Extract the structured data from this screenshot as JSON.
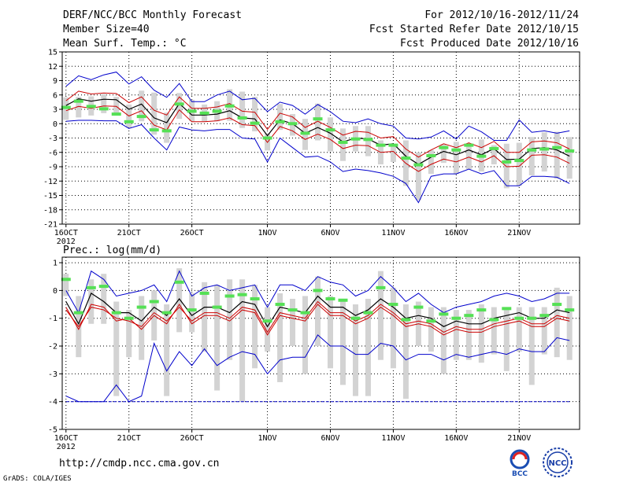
{
  "header": {
    "title": "DERF/NCC/BCC Monthly Forecast",
    "member_size": "Member Size=40",
    "variable": "Mean Surf. Temp.: °C",
    "forecast_range": "For 2012/10/16-2012/11/24",
    "started": "Fcst Started Refer Date 2012/10/15",
    "produced": "Fcst Produced Date 2012/10/16"
  },
  "footer": {
    "url": "http://cmdp.ncc.cma.gov.cn",
    "credit": "GrADS: COLA/IGES",
    "logo_left_text": "BCC",
    "logo_right_text": "NCC"
  },
  "colors": {
    "ensemble_mean": "#000000",
    "spread_lines": "#cc0000",
    "minmax_lines": "#0000cc",
    "range_bars": "#d3d3d3",
    "observation_marks": "#55e055",
    "grid": "#000000"
  },
  "chart_data": [
    {
      "type": "line",
      "title": "Mean Surf. Temp.: °C",
      "x_ticks": [
        "16OCT",
        "21OCT",
        "26OCT",
        "1NOV",
        "6NOV",
        "11NOV",
        "16NOV",
        "21NOV"
      ],
      "x_year": "2012",
      "xlim": [
        1,
        41
      ],
      "ylim": [
        -21,
        15
      ],
      "y_ticks": [
        15,
        12,
        9,
        6,
        3,
        0,
        -3,
        -6,
        -9,
        -12,
        -15,
        -18,
        -21
      ],
      "series": [
        {
          "name": "ensemble mean",
          "values": [
            3.8,
            5.2,
            4.7,
            5.1,
            5.0,
            3.0,
            4.1,
            1.2,
            0.2,
            4.2,
            1.8,
            1.8,
            2.0,
            2.7,
            1.2,
            1.0,
            -2.5,
            0.8,
            0.0,
            -2.0,
            -0.8,
            -2.0,
            -3.8,
            -3.0,
            -3.2,
            -4.5,
            -4.2,
            -6.8,
            -8.5,
            -7.0,
            -5.8,
            -6.5,
            -5.5,
            -6.5,
            -5.2,
            -7.5,
            -7.4,
            -5.2,
            -5.0,
            -5.5,
            -6.8
          ]
        },
        {
          "name": "upper spread",
          "values": [
            4.8,
            6.8,
            6.2,
            6.4,
            6.3,
            4.4,
            5.6,
            2.8,
            1.8,
            5.6,
            3.2,
            3.2,
            3.5,
            4.2,
            2.6,
            2.4,
            -1.2,
            2.2,
            1.4,
            -0.8,
            0.5,
            -0.8,
            -2.4,
            -1.6,
            -1.8,
            -3.0,
            -2.7,
            -5.3,
            -7.0,
            -5.5,
            -4.2,
            -5.0,
            -4.0,
            -5.0,
            -3.7,
            -6.0,
            -6.0,
            -3.8,
            -3.6,
            -4.0,
            -5.3
          ]
        },
        {
          "name": "lower spread",
          "values": [
            2.7,
            3.6,
            3.2,
            3.7,
            3.6,
            1.6,
            2.7,
            -0.3,
            -1.3,
            2.9,
            0.4,
            0.4,
            0.6,
            1.2,
            -0.2,
            -0.4,
            -3.9,
            -0.6,
            -1.5,
            -3.3,
            -2.2,
            -3.3,
            -5.2,
            -4.5,
            -4.6,
            -6.0,
            -5.8,
            -8.3,
            -10.0,
            -8.5,
            -7.4,
            -8.0,
            -7.0,
            -8.0,
            -6.7,
            -9.0,
            -8.9,
            -6.6,
            -6.5,
            -7.0,
            -8.3
          ]
        },
        {
          "name": "maximum",
          "values": [
            7.8,
            10.0,
            9.2,
            10.2,
            10.8,
            8.3,
            9.8,
            7.0,
            5.5,
            8.4,
            4.6,
            4.6,
            6.0,
            6.8,
            5.0,
            5.3,
            2.5,
            4.5,
            3.8,
            2.0,
            4.0,
            2.5,
            0.5,
            0.2,
            1.0,
            0.0,
            -0.5,
            -3.0,
            -3.2,
            -2.8,
            -1.5,
            -3.2,
            -0.5,
            -1.7,
            -3.5,
            -3.5,
            0.8,
            -1.8,
            -1.5,
            -2.0,
            -1.5
          ]
        },
        {
          "name": "minimum",
          "values": [
            0.5,
            0.7,
            0.7,
            0.6,
            0.6,
            -1.0,
            -0.2,
            -3.0,
            -5.5,
            -0.7,
            -1.3,
            -1.5,
            -1.2,
            -1.2,
            -3.0,
            -3.2,
            -8.0,
            -3.0,
            -5.0,
            -7.0,
            -6.8,
            -8.0,
            -10.0,
            -9.5,
            -9.8,
            -10.3,
            -11.0,
            -12.5,
            -16.5,
            -11.0,
            -10.5,
            -10.5,
            -9.5,
            -10.5,
            -9.8,
            -13.0,
            -13.0,
            -11.0,
            -11.0,
            -11.2,
            -12.5
          ]
        },
        {
          "name": "observation",
          "values": [
            3.4,
            4.7,
            3.6,
            3.1,
            2.0,
            0.4,
            1.5,
            -1.3,
            -1.5,
            4.1,
            2.6,
            2.2,
            2.6,
            3.7,
            1.2,
            0.1,
            -3.0,
            0.4,
            0.0,
            -2.0,
            1.0,
            -1.3,
            -3.9,
            -3.2,
            -3.3,
            -4.5,
            -4.5,
            -7.2,
            -8.6,
            -6.7,
            -5.0,
            -5.5,
            -4.5,
            -6.8,
            -5.2,
            -8.0,
            -7.7,
            -5.5,
            -5.3,
            -5.0,
            -5.7
          ]
        },
        {
          "name": "range top",
          "values": [
            5.5,
            5.6,
            5.7,
            6.2,
            5.6,
            4.0,
            6.9,
            6.5,
            2.3,
            6.4,
            5.0,
            4.0,
            4.7,
            7.2,
            6.7,
            5.6,
            -2.0,
            4.1,
            2.0,
            1.0,
            4.2,
            1.3,
            -1.0,
            -0.5,
            -0.5,
            -3.5,
            -4.5,
            -3.5,
            -6.0,
            -5.5,
            -4.3,
            -3.8,
            -4.2,
            -3.3,
            -4.5,
            -4.2,
            -4.0,
            -2.8,
            -1.8,
            -1.7,
            -2.8
          ]
        },
        {
          "name": "range bottom",
          "values": [
            0.8,
            1.3,
            1.7,
            2.2,
            2.0,
            -0.8,
            0.5,
            -2.3,
            -4.0,
            1.0,
            0.5,
            0.5,
            0.5,
            0.6,
            -0.9,
            -1.6,
            -5.6,
            -1.3,
            -2.5,
            -5.5,
            -3.5,
            -5.8,
            -7.8,
            -5.8,
            -6.8,
            -8.5,
            -8.0,
            -13.0,
            -16.0,
            -10.5,
            -8.2,
            -10.5,
            -9.5,
            -10.0,
            -8.5,
            -13.5,
            -13.0,
            -10.8,
            -10.0,
            -11.5,
            -11.5
          ]
        }
      ]
    },
    {
      "type": "line",
      "title": "Prec.: log(mm/d)",
      "x_ticks": [
        "16OCT",
        "21OCT",
        "26OCT",
        "1NOV",
        "6NOV",
        "11NOV",
        "16NOV",
        "21NOV"
      ],
      "x_year": "2012",
      "xlim": [
        1,
        41
      ],
      "ylim": [
        -5,
        1.2
      ],
      "y_ticks": [
        1,
        0,
        -1,
        -2,
        -3,
        -4,
        -5
      ],
      "series": [
        {
          "name": "ensemble mean",
          "values": [
            -0.4,
            -1.2,
            -0.1,
            -0.4,
            -0.8,
            -0.8,
            -1.1,
            -0.6,
            -0.9,
            -0.3,
            -0.9,
            -0.6,
            -0.6,
            -0.8,
            -0.4,
            -0.5,
            -1.3,
            -0.6,
            -0.7,
            -0.8,
            -0.2,
            -0.6,
            -0.6,
            -0.9,
            -0.7,
            -0.3,
            -0.6,
            -1.0,
            -0.9,
            -1.0,
            -1.3,
            -1.1,
            -1.2,
            -1.2,
            -1.0,
            -0.9,
            -0.8,
            -1.0,
            -1.0,
            -0.7,
            -0.8
          ]
        },
        {
          "name": "upper spread",
          "values": [
            -0.7,
            -1.3,
            -0.6,
            -0.7,
            -1.0,
            -1.1,
            -1.3,
            -0.8,
            -1.1,
            -0.6,
            -1.1,
            -0.8,
            -0.8,
            -1.0,
            -0.6,
            -0.7,
            -1.5,
            -0.8,
            -0.9,
            -1.0,
            -0.4,
            -0.8,
            -0.8,
            -1.1,
            -0.9,
            -0.5,
            -0.8,
            -1.2,
            -1.1,
            -1.2,
            -1.5,
            -1.3,
            -1.4,
            -1.4,
            -1.2,
            -1.1,
            -1.0,
            -1.2,
            -1.2,
            -0.9,
            -1.0
          ]
        },
        {
          "name": "lower spread",
          "values": [
            -0.6,
            -1.4,
            -0.5,
            -0.6,
            -1.1,
            -1.0,
            -1.4,
            -0.9,
            -1.2,
            -0.5,
            -1.2,
            -0.9,
            -0.9,
            -1.1,
            -0.7,
            -0.8,
            -1.6,
            -0.9,
            -1.0,
            -1.1,
            -0.5,
            -0.9,
            -0.9,
            -1.2,
            -1.0,
            -0.6,
            -0.9,
            -1.3,
            -1.2,
            -1.3,
            -1.6,
            -1.4,
            -1.5,
            -1.5,
            -1.3,
            -1.2,
            -1.1,
            -1.3,
            -1.3,
            -1.0,
            -1.1
          ]
        },
        {
          "name": "maximum",
          "values": [
            0.0,
            -0.8,
            0.7,
            0.4,
            -0.2,
            -0.1,
            0.0,
            0.2,
            -0.4,
            0.7,
            -0.2,
            0.1,
            0.2,
            0.0,
            0.1,
            0.2,
            -0.6,
            0.2,
            0.2,
            0.0,
            0.5,
            0.3,
            0.2,
            -0.2,
            0.0,
            0.5,
            0.1,
            -0.4,
            -0.1,
            -0.5,
            -0.8,
            -0.6,
            -0.5,
            -0.4,
            -0.2,
            -0.1,
            -0.2,
            -0.4,
            -0.3,
            -0.1,
            -0.1
          ]
        },
        {
          "name": "minimum",
          "values": [
            -3.8,
            -4.0,
            -4.0,
            -4.0,
            -3.4,
            -4.0,
            -3.8,
            -1.9,
            -2.9,
            -2.2,
            -2.7,
            -2.1,
            -2.7,
            -2.4,
            -2.2,
            -2.3,
            -3.0,
            -2.5,
            -2.4,
            -2.4,
            -1.6,
            -2.0,
            -2.0,
            -2.3,
            -2.3,
            -1.9,
            -2.0,
            -2.5,
            -2.3,
            -2.3,
            -2.5,
            -2.3,
            -2.4,
            -2.3,
            -2.2,
            -2.3,
            -2.1,
            -2.2,
            -2.2,
            -1.7,
            -1.8
          ]
        },
        {
          "name": "lower bound",
          "values": [
            -4.0,
            -4.0,
            -4.0,
            -4.0,
            -4.0,
            -4.0,
            -4.0,
            -4.0,
            -4.0,
            -4.0,
            -4.0,
            -4.0,
            -4.0,
            -4.0,
            -4.0,
            -4.0,
            -4.0,
            -4.0,
            -4.0,
            -4.0,
            -4.0,
            -4.0,
            -4.0,
            -4.0,
            -4.0,
            -4.0,
            -4.0,
            -4.0,
            -4.0,
            -4.0,
            -4.0,
            -4.0,
            -4.0,
            -4.0,
            -4.0,
            -4.0,
            -4.0,
            -4.0,
            -4.0,
            -4.0,
            -4.0
          ]
        },
        {
          "name": "observation",
          "values": [
            0.4,
            -0.8,
            0.1,
            0.15,
            -0.8,
            -1.0,
            -0.6,
            -0.4,
            -0.8,
            0.3,
            -0.7,
            -0.1,
            -0.6,
            -0.2,
            -0.15,
            -0.3,
            -1.1,
            -0.5,
            -0.7,
            -0.8,
            0.0,
            -0.3,
            -0.35,
            -1.0,
            -0.8,
            0.1,
            -0.5,
            -1.05,
            -0.6,
            -1.1,
            -0.85,
            -1.0,
            -0.9,
            -0.7,
            -1.05,
            -0.65,
            -1.0,
            -1.0,
            -0.9,
            -0.5,
            -0.7
          ]
        },
        {
          "name": "range top",
          "values": [
            0.6,
            -0.2,
            0.4,
            0.6,
            -0.4,
            -0.7,
            -0.2,
            0.0,
            -0.5,
            0.8,
            -0.1,
            0.3,
            0.2,
            0.4,
            0.4,
            0.2,
            -0.6,
            -0.1,
            -0.3,
            -0.2,
            0.5,
            -0.2,
            -0.3,
            -0.5,
            -0.3,
            0.7,
            0.1,
            -0.5,
            -0.4,
            -0.6,
            -0.6,
            -0.7,
            -0.7,
            -0.5,
            -0.6,
            -0.6,
            -0.6,
            -0.6,
            -0.6,
            0.1,
            -0.2
          ]
        },
        {
          "name": "range bottom",
          "values": [
            -0.2,
            -2.4,
            -1.2,
            -1.2,
            -3.8,
            -2.4,
            -2.5,
            -1.8,
            -3.8,
            -1.5,
            -1.5,
            -2.2,
            -3.6,
            -2.5,
            -4.0,
            -2.8,
            -2.2,
            -3.3,
            -2.0,
            -3.0,
            -2.0,
            -2.8,
            -3.4,
            -3.8,
            -3.8,
            -2.5,
            -2.8,
            -3.9,
            -2.0,
            -2.2,
            -3.0,
            -2.5,
            -2.5,
            -2.6,
            -2.3,
            -2.9,
            -2.2,
            -3.4,
            -2.3,
            -2.4,
            -2.5
          ]
        }
      ]
    }
  ]
}
